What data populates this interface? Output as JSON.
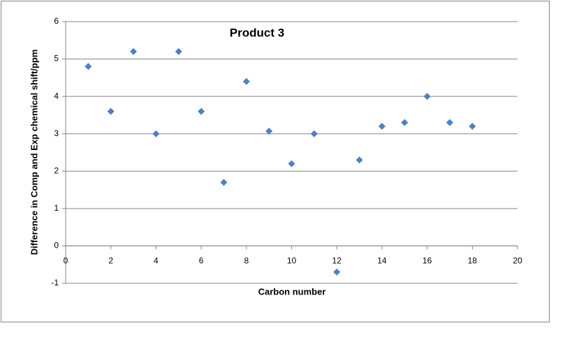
{
  "chart_data": {
    "type": "scatter",
    "title": "Product 3",
    "x_label": "Carbon number",
    "y_label": "Difference in Comp and Exp chemical shift/ppm",
    "x": [
      1,
      2,
      3,
      4,
      5,
      6,
      7,
      8,
      9,
      10,
      11,
      12,
      13,
      14,
      15,
      16,
      17,
      18
    ],
    "values": [
      4.8,
      3.6,
      5.2,
      3.0,
      5.2,
      3.6,
      1.7,
      4.4,
      3.07,
      2.2,
      3.0,
      -0.7,
      2.3,
      3.2,
      3.3,
      4.0,
      3.3,
      3.2
    ],
    "color": "#4f81bd",
    "xlim": [
      0,
      20
    ],
    "xticks": [
      0,
      2,
      4,
      6,
      8,
      10,
      12,
      14,
      16,
      18,
      20
    ],
    "ylim": [
      -1,
      6
    ],
    "yticks": [
      -1,
      0,
      1,
      2,
      3,
      4,
      5,
      6
    ],
    "grid": true
  }
}
